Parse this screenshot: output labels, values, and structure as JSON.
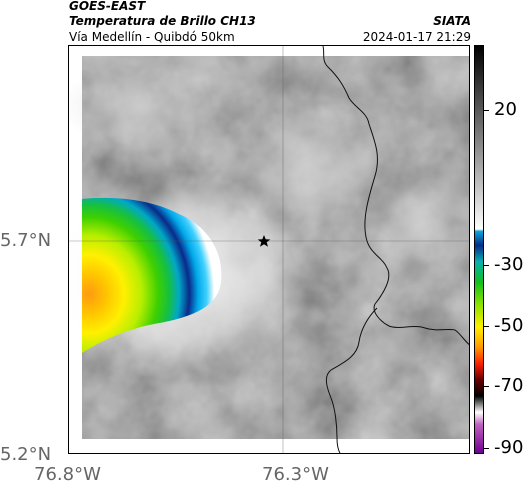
{
  "header": {
    "satellite": "GOES-EAST",
    "product": "Temperatura de Brillo CH13",
    "region": "Vía Medellín - Quibdó 50km",
    "agency": "SIATA",
    "datetime": "2024-01-17 21:29"
  },
  "axes": {
    "lat_labels": [
      "5.7°N",
      "5.2°N"
    ],
    "lon_labels": [
      "76.8°W",
      "76.3°W"
    ]
  },
  "colorbar": {
    "labels": [
      "20",
      "-30",
      "-50",
      "-70",
      "-90"
    ]
  },
  "map": {
    "marker_icon": "star-icon"
  }
}
